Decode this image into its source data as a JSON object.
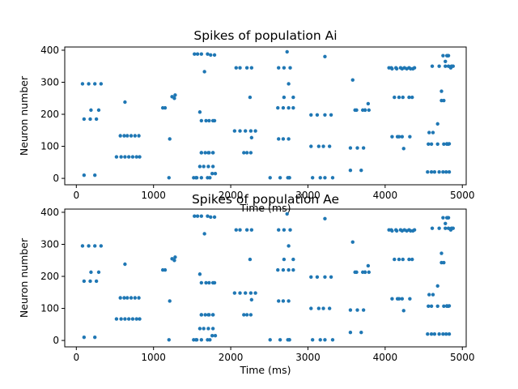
{
  "chart_data": [
    {
      "type": "scatter",
      "title": "Spikes of population Ai",
      "xlabel": "Time (ms)",
      "ylabel": "Neuron number",
      "xlim": [
        -150,
        5050
      ],
      "ylim": [
        -20,
        410
      ],
      "xticks": [
        0,
        1000,
        2000,
        3000,
        4000,
        5000
      ],
      "yticks": [
        0,
        100,
        200,
        300,
        400
      ],
      "xticklabels": [
        "0",
        "1000",
        "2000",
        "3000",
        "4000",
        "5000"
      ],
      "yticklabels": [
        "0",
        "100",
        "200",
        "300",
        "400"
      ],
      "marker_color": "#1f77b4",
      "grid": false,
      "x": [
        80,
        160,
        240,
        320,
        100,
        180,
        260,
        190,
        290,
        100,
        240,
        570,
        620,
        660,
        710,
        760,
        810,
        520,
        580,
        630,
        680,
        730,
        780,
        820,
        630,
        1120,
        1150,
        1210,
        1240,
        1270,
        1280,
        1200,
        1530,
        1570,
        1620,
        1660,
        1700,
        1740,
        1790,
        1620,
        1680,
        1720,
        1770,
        1790,
        1600,
        1620,
        1720,
        1770,
        1620,
        1670,
        1710,
        1770,
        1650,
        1600,
        1710,
        1770,
        1550,
        1620,
        1700,
        1730,
        1760,
        1800,
        1520,
        1560,
        2050,
        2120,
        2190,
        2260,
        2320,
        2270,
        2170,
        2210,
        2260,
        2120,
        2210,
        2270,
        2070,
        2250,
        2610,
        2680,
        2750,
        2810,
        2690,
        2750,
        2810,
        2620,
        2680,
        2750,
        2620,
        2690,
        2770,
        2730,
        2760,
        2510,
        2640,
        2740,
        2760,
        3040,
        3120,
        3220,
        3300,
        3040,
        3140,
        3200,
        3280,
        3060,
        3160,
        3220,
        3320,
        3220,
        3550,
        3640,
        3720,
        3580,
        3630,
        3710,
        3610,
        3740,
        3780,
        3740,
        3790,
        3550,
        3690,
        4050,
        4080,
        4140,
        4200,
        4250,
        4310,
        4380,
        4090,
        4150,
        4220,
        4280,
        4330,
        4360,
        4120,
        4180,
        4230,
        4310,
        4350,
        4240,
        4090,
        4160,
        4220,
        4320,
        4180,
        4550,
        4600,
        4640,
        4700,
        4750,
        4790,
        4830,
        4610,
        4700,
        4780,
        4820,
        4860,
        4880,
        4560,
        4600,
        4680,
        4760,
        4800,
        4820,
        4750,
        4780,
        4800,
        4810,
        4820,
        4850,
        4760,
        4730,
        4570,
        4620,
        4680,
        4730,
        4800,
        4830
      ],
      "y": [
        295,
        295,
        295,
        295,
        185,
        185,
        185,
        213,
        213,
        10,
        10,
        133,
        133,
        133,
        133,
        133,
        133,
        67,
        67,
        67,
        67,
        67,
        67,
        67,
        238,
        220,
        220,
        123,
        255,
        250,
        260,
        2,
        388,
        388,
        388,
        333,
        388,
        385,
        385,
        180,
        180,
        180,
        180,
        180,
        207,
        80,
        80,
        80,
        80,
        80,
        80,
        80,
        37,
        37,
        37,
        37,
        2,
        2,
        2,
        2,
        15,
        15,
        2,
        2,
        148,
        148,
        148,
        148,
        148,
        127,
        80,
        80,
        80,
        345,
        345,
        345,
        345,
        253,
        220,
        220,
        220,
        220,
        253,
        295,
        253,
        123,
        123,
        123,
        345,
        345,
        345,
        395,
        2,
        2,
        2,
        2,
        2,
        198,
        198,
        198,
        198,
        100,
        100,
        100,
        100,
        2,
        2,
        2,
        2,
        380,
        95,
        95,
        95,
        307,
        213,
        213,
        213,
        213,
        233,
        213,
        213,
        25,
        25,
        345,
        345,
        345,
        345,
        345,
        345,
        345,
        342,
        342,
        342,
        342,
        342,
        342,
        253,
        253,
        253,
        253,
        253,
        93,
        130,
        130,
        130,
        130,
        130,
        20,
        20,
        20,
        20,
        20,
        20,
        20,
        350,
        350,
        350,
        350,
        350,
        350,
        107,
        107,
        107,
        107,
        107,
        107,
        383,
        365,
        383,
        383,
        383,
        345,
        243,
        243,
        143,
        143,
        170,
        272,
        108,
        108
      ]
    },
    {
      "type": "scatter",
      "title": "Spikes of population Ae",
      "xlabel": "Time (ms)",
      "ylabel": "Neuron number",
      "xlim": [
        -150,
        5050
      ],
      "ylim": [
        -20,
        410
      ],
      "xticks": [
        0,
        1000,
        2000,
        3000,
        4000,
        5000
      ],
      "yticks": [
        0,
        100,
        200,
        300,
        400
      ],
      "xticklabels": [
        "0",
        "1000",
        "2000",
        "3000",
        "4000",
        "5000"
      ],
      "yticklabels": [
        "0",
        "100",
        "200",
        "300",
        "400"
      ],
      "marker_color": "#1f77b4",
      "grid": false,
      "x": [
        80,
        160,
        240,
        320,
        100,
        180,
        260,
        190,
        290,
        100,
        240,
        570,
        620,
        660,
        710,
        760,
        810,
        520,
        580,
        630,
        680,
        730,
        780,
        820,
        630,
        1120,
        1150,
        1210,
        1240,
        1270,
        1280,
        1200,
        1530,
        1570,
        1620,
        1660,
        1700,
        1740,
        1790,
        1620,
        1680,
        1720,
        1770,
        1790,
        1600,
        1620,
        1720,
        1770,
        1620,
        1670,
        1710,
        1770,
        1650,
        1600,
        1710,
        1770,
        1550,
        1620,
        1700,
        1730,
        1760,
        1800,
        1520,
        1560,
        2050,
        2120,
        2190,
        2260,
        2320,
        2270,
        2170,
        2210,
        2260,
        2120,
        2210,
        2270,
        2070,
        2250,
        2610,
        2680,
        2750,
        2810,
        2690,
        2750,
        2810,
        2620,
        2680,
        2750,
        2620,
        2690,
        2770,
        2730,
        2760,
        2510,
        2640,
        2740,
        2760,
        3040,
        3120,
        3220,
        3300,
        3040,
        3140,
        3200,
        3280,
        3060,
        3160,
        3220,
        3320,
        3220,
        3550,
        3640,
        3720,
        3580,
        3630,
        3710,
        3610,
        3740,
        3780,
        3740,
        3790,
        3550,
        3690,
        4050,
        4080,
        4140,
        4200,
        4250,
        4310,
        4380,
        4090,
        4150,
        4220,
        4280,
        4330,
        4360,
        4120,
        4180,
        4230,
        4310,
        4350,
        4240,
        4090,
        4160,
        4220,
        4320,
        4180,
        4550,
        4600,
        4640,
        4700,
        4750,
        4790,
        4830,
        4610,
        4700,
        4780,
        4820,
        4860,
        4880,
        4560,
        4600,
        4680,
        4760,
        4800,
        4820,
        4750,
        4780,
        4800,
        4810,
        4820,
        4850,
        4760,
        4730,
        4570,
        4620,
        4680,
        4730,
        4800,
        4830
      ],
      "y": [
        295,
        295,
        295,
        295,
        185,
        185,
        185,
        213,
        213,
        10,
        10,
        133,
        133,
        133,
        133,
        133,
        133,
        67,
        67,
        67,
        67,
        67,
        67,
        67,
        238,
        220,
        220,
        123,
        255,
        250,
        260,
        2,
        388,
        388,
        388,
        333,
        388,
        385,
        385,
        180,
        180,
        180,
        180,
        180,
        207,
        80,
        80,
        80,
        80,
        80,
        80,
        80,
        37,
        37,
        37,
        37,
        2,
        2,
        2,
        2,
        15,
        15,
        2,
        2,
        148,
        148,
        148,
        148,
        148,
        127,
        80,
        80,
        80,
        345,
        345,
        345,
        345,
        253,
        220,
        220,
        220,
        220,
        253,
        295,
        253,
        123,
        123,
        123,
        345,
        345,
        345,
        395,
        2,
        2,
        2,
        2,
        2,
        198,
        198,
        198,
        198,
        100,
        100,
        100,
        100,
        2,
        2,
        2,
        2,
        380,
        95,
        95,
        95,
        307,
        213,
        213,
        213,
        213,
        233,
        213,
        213,
        25,
        25,
        345,
        345,
        345,
        345,
        345,
        345,
        345,
        342,
        342,
        342,
        342,
        342,
        342,
        253,
        253,
        253,
        253,
        253,
        93,
        130,
        130,
        130,
        130,
        130,
        20,
        20,
        20,
        20,
        20,
        20,
        20,
        350,
        350,
        350,
        350,
        350,
        350,
        107,
        107,
        107,
        107,
        107,
        107,
        383,
        365,
        383,
        383,
        383,
        345,
        243,
        243,
        143,
        143,
        170,
        272,
        108,
        108
      ]
    }
  ]
}
